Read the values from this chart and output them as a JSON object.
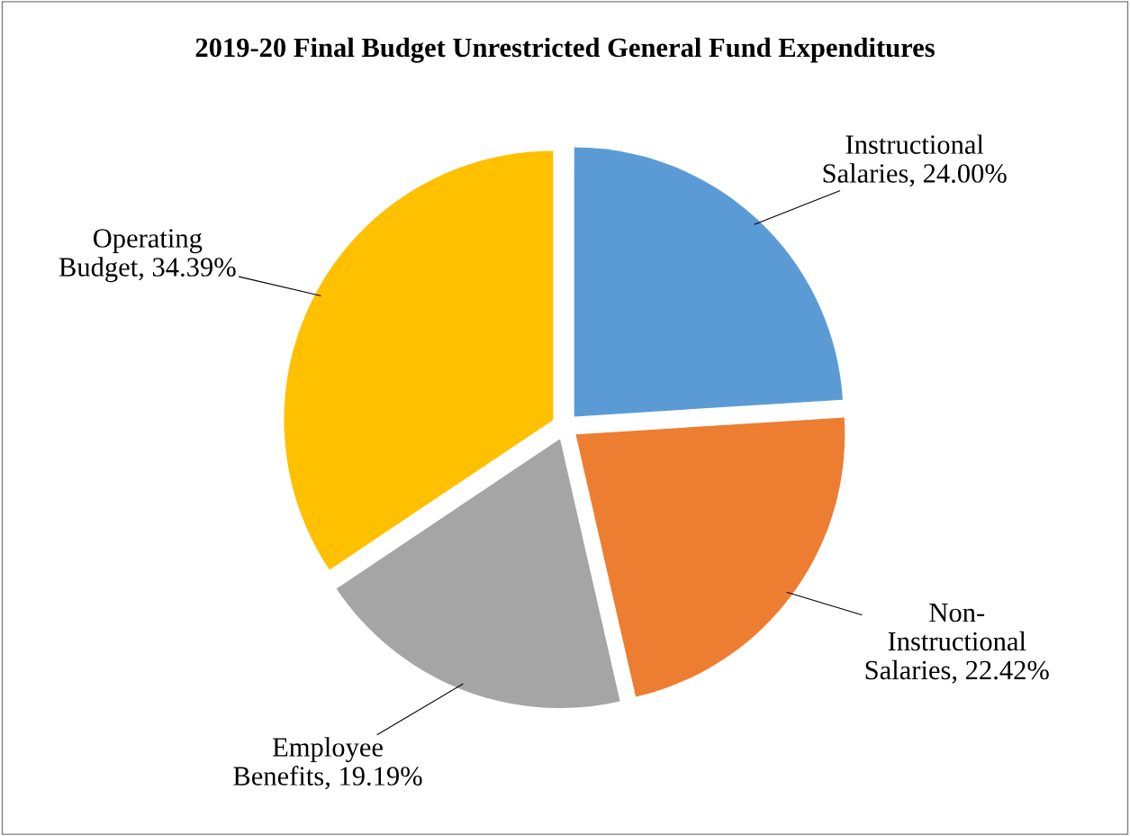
{
  "chart_data": {
    "type": "pie",
    "title": "2019-20 Final Budget Unrestricted General Fund Expenditures",
    "categories": [
      "Instructional Salaries",
      "Non-Instructional Salaries",
      "Employee Benefits",
      "Operating Budget"
    ],
    "values": [
      24.0,
      22.42,
      19.19,
      34.39
    ],
    "value_labels": [
      "24.00%",
      "22.42%",
      "19.19%",
      "34.39%"
    ],
    "colors": [
      "#5b9bd5",
      "#ed7d31",
      "#a5a5a5",
      "#ffc000"
    ],
    "legend": false
  }
}
